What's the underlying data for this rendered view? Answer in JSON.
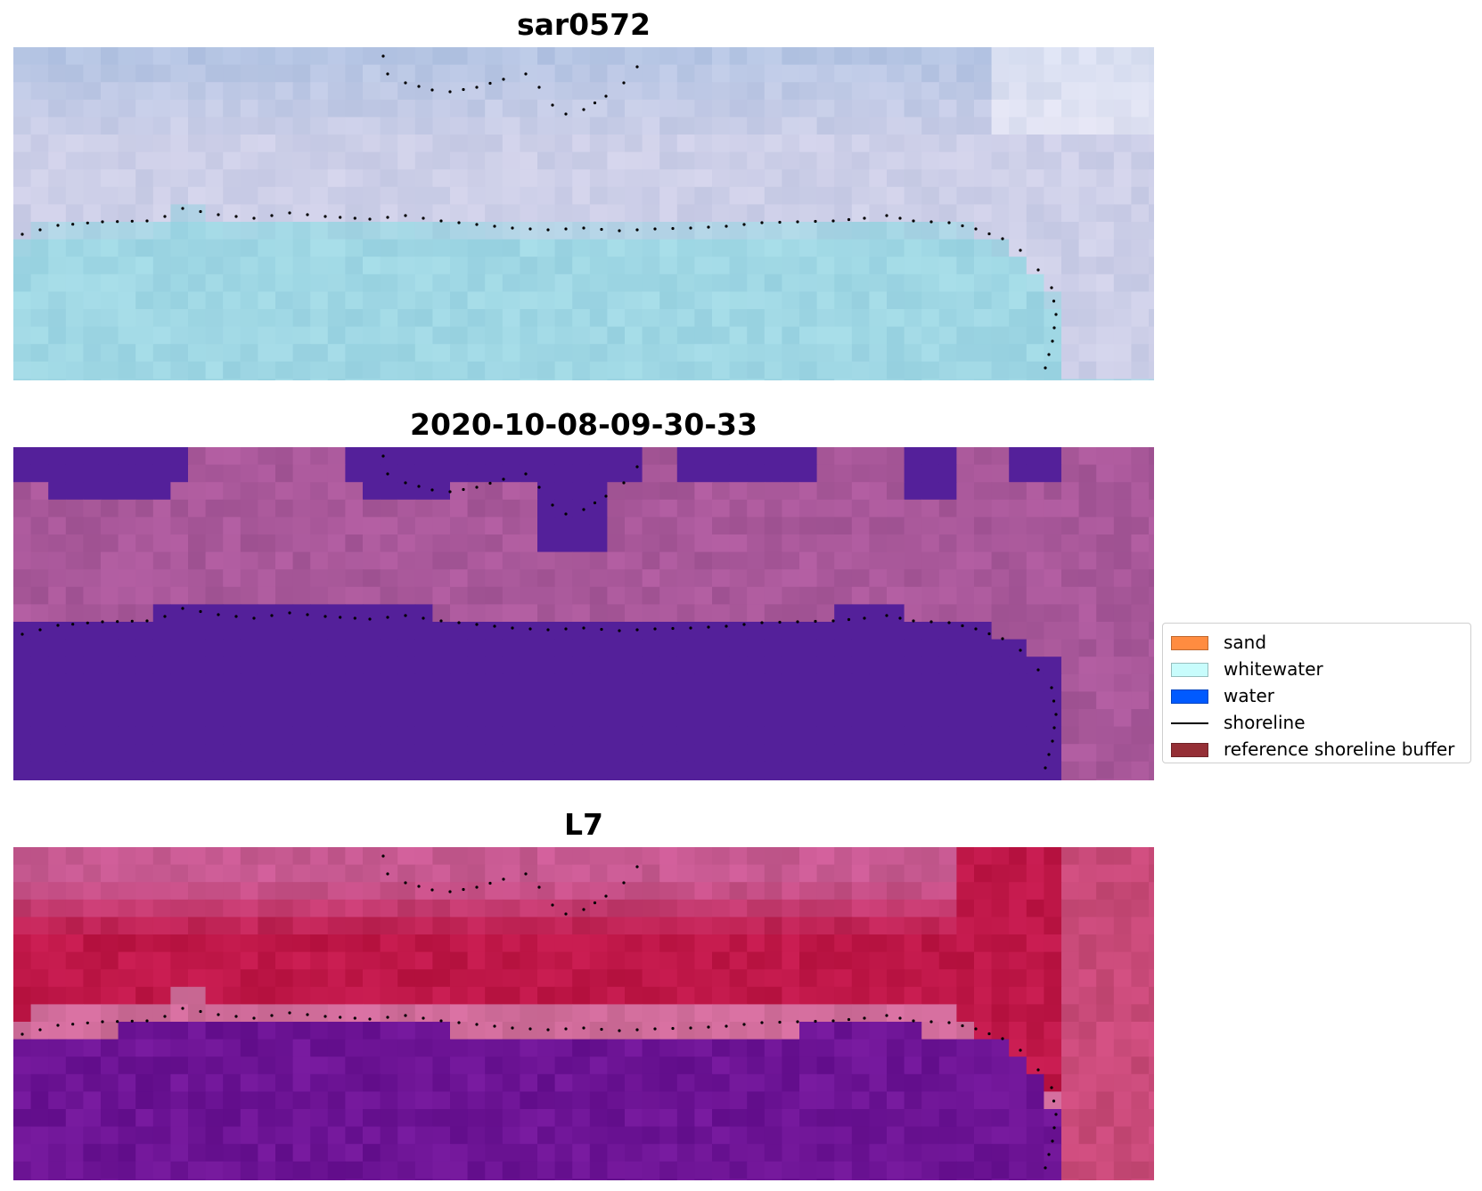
{
  "panels": [
    {
      "id": "rgb",
      "title": "sar0572",
      "style": "rgb"
    },
    {
      "id": "classified",
      "title": "2020-10-08-09-30-33",
      "style": "classified"
    },
    {
      "id": "mndwi",
      "title": "L7",
      "style": "index"
    }
  ],
  "colors": {
    "rgb_sky": "#b3c4e3",
    "rgb_mid": "#cdcfe8",
    "rgb_water": "#9fd7e4",
    "classified_land": "#a9589a",
    "classified_water": "#54209a",
    "index_top": "#c85a92",
    "index_red": "#bf1748",
    "index_band": "#d06c9a",
    "index_water": "#6d1495",
    "shoreline": "#000000"
  },
  "legend": {
    "items": [
      {
        "label": "sand",
        "kind": "patch",
        "color": "#ff8c40"
      },
      {
        "label": "whitewater",
        "kind": "patch",
        "color": "#c8fcfc"
      },
      {
        "label": "water",
        "kind": "patch",
        "color": "#005aff"
      },
      {
        "label": "shoreline",
        "kind": "line",
        "color": "#000000"
      },
      {
        "label": "reference shoreline buffer",
        "kind": "patch",
        "color": "#952f36"
      }
    ]
  }
}
